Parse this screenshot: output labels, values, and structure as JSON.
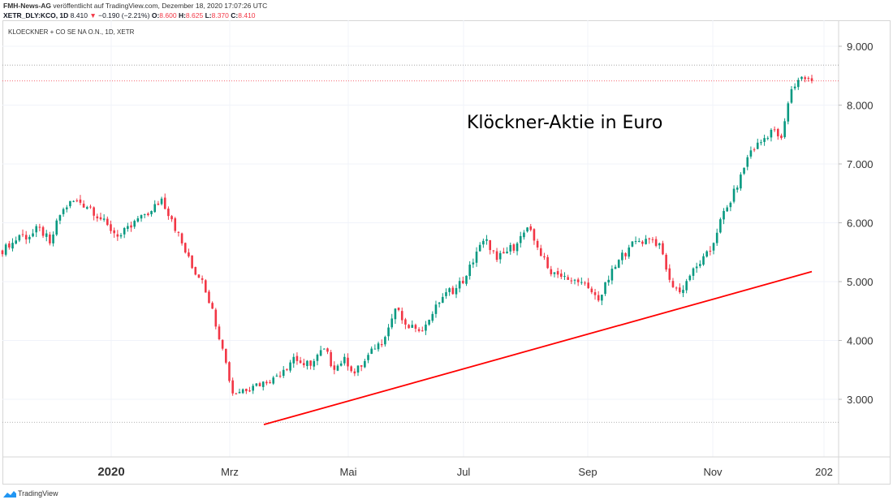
{
  "header": {
    "publisher": "FMH-News-AG",
    "published_line": "veröffentlicht auf TradingView.com, Dezember 18, 2020 17:07:26 UTC",
    "symbol": "XETR_DLY:KCO, 1D",
    "last": "8.410",
    "change": "−0.190 (−2.21%)",
    "o_label": "O:",
    "o": "8.600",
    "h_label": "H:",
    "h": "8.625",
    "l_label": "L:",
    "l": "8.370",
    "c_label": "C:",
    "c": "8.410"
  },
  "legend": "KLOECKNER + CO SE NA O.N., 1D, XETR",
  "footer": "TradingView",
  "colors": {
    "up": "#089981",
    "down": "#f23645",
    "trend": "#ff0000"
  },
  "chart_data": {
    "type": "candlestick",
    "title": "Klöckner-Aktie in Euro",
    "ylim": [
      2.2,
      9.4
    ],
    "y_ticks": [
      "3.000",
      "4.000",
      "5.000",
      "6.000",
      "7.000",
      "8.000",
      "9.000"
    ],
    "x_ticks": [
      "2020",
      "Mrz",
      "Mai",
      "Jul",
      "Sep",
      "Nov",
      "202"
    ],
    "closes": [
      5.58,
      5.79,
      5.76,
      5.92,
      5.65,
      6.13,
      6.37,
      6.34,
      6.27,
      6.06,
      5.86,
      5.79,
      5.92,
      6.13,
      6.2,
      6.41,
      6.06,
      5.65,
      5.23,
      5.03,
      4.54,
      3.86,
      3.1,
      3.17,
      3.23,
      3.3,
      3.37,
      3.5,
      3.72,
      3.58,
      3.65,
      3.86,
      3.5,
      3.72,
      3.44,
      3.65,
      3.86,
      4.06,
      4.54,
      4.27,
      4.2,
      4.27,
      4.61,
      4.82,
      4.89,
      5.1,
      5.51,
      5.72,
      5.37,
      5.51,
      5.65,
      5.92,
      5.58,
      5.23,
      5.12,
      5.03,
      4.99,
      4.89,
      4.68,
      5.03,
      5.37,
      5.58,
      5.69,
      5.72,
      5.65,
      5.03,
      4.82,
      5.1,
      5.3,
      5.51,
      6.06,
      6.34,
      6.82,
      7.23,
      7.37,
      7.58,
      7.44,
      8.27,
      8.48,
      8.41
    ],
    "trendline": {
      "from": 2.57,
      "to": 5.17
    },
    "reference_lines": [
      8.68,
      8.41,
      2.61
    ]
  }
}
